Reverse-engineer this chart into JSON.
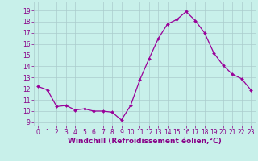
{
  "x": [
    0,
    1,
    2,
    3,
    4,
    5,
    6,
    7,
    8,
    9,
    10,
    11,
    12,
    13,
    14,
    15,
    16,
    17,
    18,
    19,
    20,
    21,
    22,
    23
  ],
  "y": [
    12.2,
    11.9,
    10.4,
    10.5,
    10.1,
    10.2,
    10.0,
    10.0,
    9.9,
    9.2,
    10.5,
    12.8,
    14.7,
    16.5,
    17.8,
    18.2,
    18.9,
    18.1,
    17.0,
    15.2,
    14.1,
    13.3,
    12.9,
    11.9
  ],
  "line_color": "#990099",
  "marker": "D",
  "marker_size": 2.0,
  "linewidth": 0.9,
  "bg_color": "#c8f0ea",
  "grid_color": "#aacccc",
  "xlabel": "Windchill (Refroidissement éolien,°C)",
  "xlabel_fontsize": 6.5,
  "tick_fontsize": 5.5,
  "yticks": [
    9,
    10,
    11,
    12,
    13,
    14,
    15,
    16,
    17,
    18,
    19
  ],
  "xticks": [
    0,
    1,
    2,
    3,
    4,
    5,
    6,
    7,
    8,
    9,
    10,
    11,
    12,
    13,
    14,
    15,
    16,
    17,
    18,
    19,
    20,
    21,
    22,
    23
  ],
  "ylim": [
    8.7,
    19.8
  ],
  "xlim": [
    -0.5,
    23.5
  ],
  "tick_color": "#880088",
  "label_color": "#880088"
}
